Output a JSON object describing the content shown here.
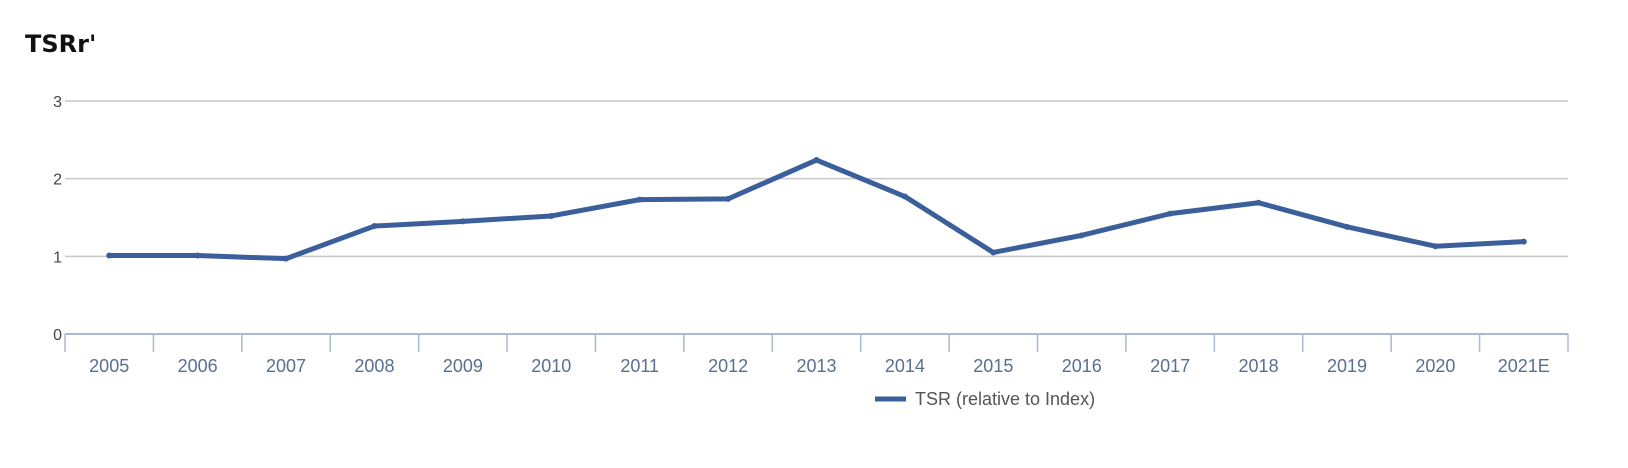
{
  "chart_data": {
    "type": "line",
    "title": "TSRr'",
    "xlabel": "",
    "ylabel": "",
    "categories": [
      "2005",
      "2006",
      "2007",
      "2008",
      "2009",
      "2010",
      "2011",
      "2012",
      "2013",
      "2014",
      "2015",
      "2016",
      "2017",
      "2018",
      "2019",
      "2020",
      "2021E"
    ],
    "series": [
      {
        "name": "TSR (relative to Index)",
        "values": [
          1.01,
          1.01,
          0.97,
          1.39,
          1.45,
          1.52,
          1.73,
          1.74,
          2.24,
          1.77,
          1.05,
          1.27,
          1.55,
          1.69,
          1.38,
          1.13,
          1.19
        ]
      }
    ],
    "ylim": [
      0,
      3
    ],
    "yticks": [
      0,
      1,
      2,
      3
    ],
    "grid": true,
    "legend_position": "bottom-center"
  },
  "colors": {
    "series": "#3b5f9b",
    "grid": "#c8c8c8",
    "axis": "#a9bbd1"
  }
}
